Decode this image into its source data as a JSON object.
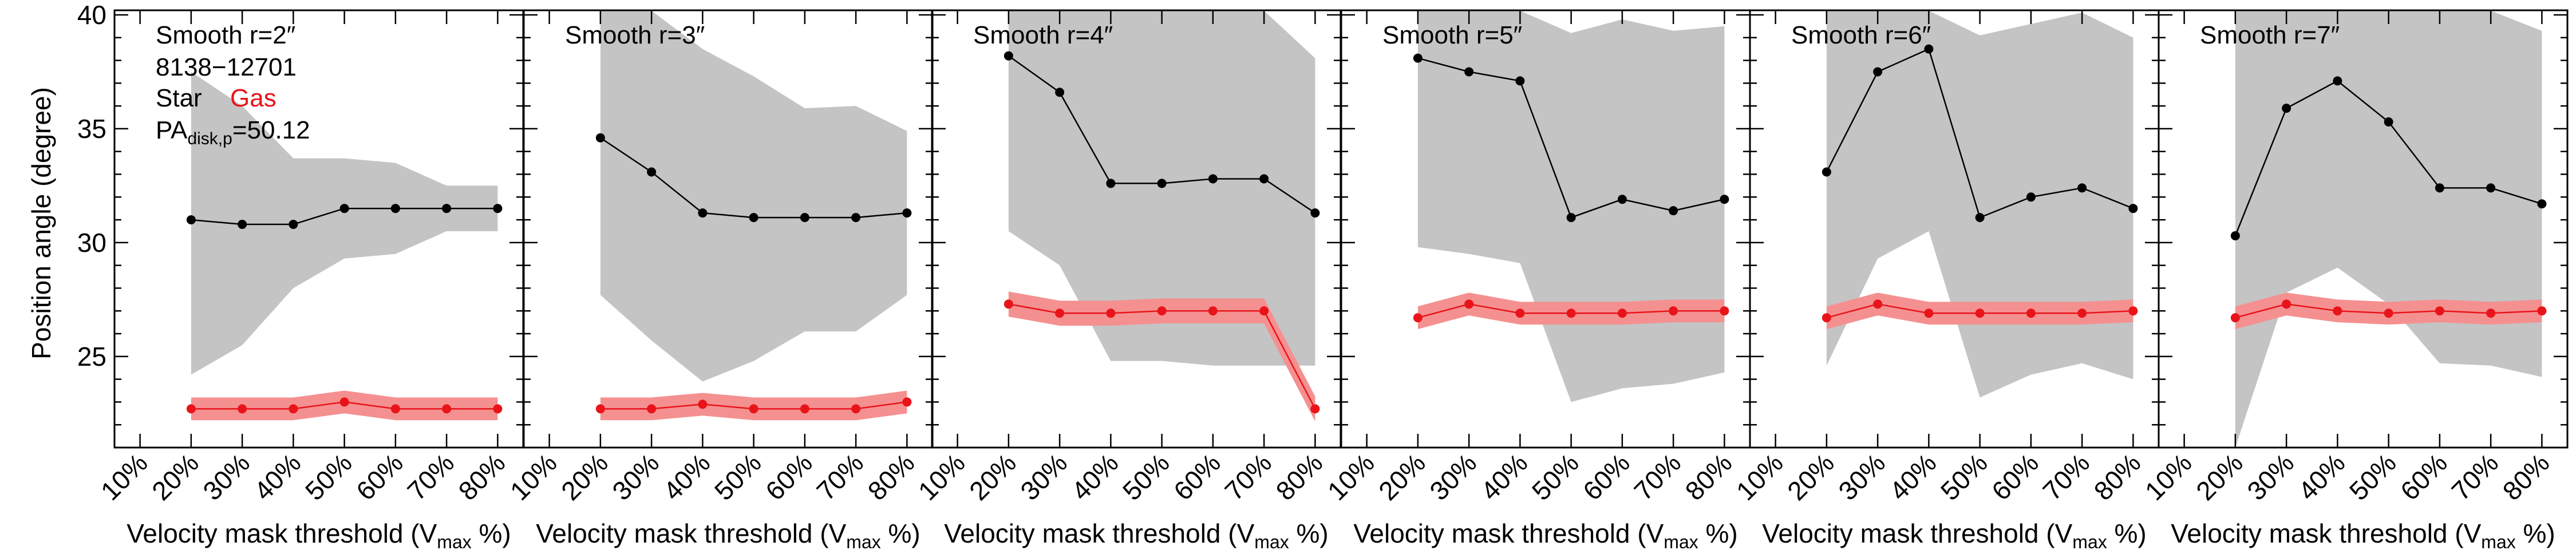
{
  "chart_data": {
    "type": "line",
    "ylabel": "Position angle (degree)",
    "ylim": [
      21,
      40.2
    ],
    "yticks": [
      25,
      30,
      35,
      40
    ],
    "x_tick_labels": [
      "10%",
      "20%",
      "30%",
      "40%",
      "50%",
      "60%",
      "70%",
      "80%"
    ],
    "xlim": [
      5,
      85
    ],
    "annotation": {
      "id_label": "8138−12701",
      "star_label": "Star",
      "gas_label": "Gas",
      "pa_prefix": "PA",
      "pa_subscript": "disk,p",
      "pa_value": "=50.12"
    },
    "colors": {
      "star_line": "#000000",
      "star_band": "#c4c4c4",
      "gas_line": "#e8141a",
      "gas_band": "#f59090"
    },
    "panels": [
      {
        "title": "Smooth r=2″",
        "xlabel_main": "Velocity mask threshold (V",
        "xlabel_sub": "max",
        "xlabel_end": " %)",
        "x": [
          20,
          30,
          40,
          50,
          60,
          70,
          80
        ],
        "star": [
          31.0,
          30.8,
          30.8,
          31.5,
          31.5,
          31.5,
          31.5
        ],
        "star_band_upper": [
          37.5,
          36.0,
          33.7,
          33.7,
          33.5,
          32.5,
          32.5
        ],
        "star_band_lower": [
          24.2,
          25.5,
          28.0,
          29.3,
          29.5,
          30.5,
          30.5
        ],
        "gas": [
          22.7,
          22.7,
          22.7,
          23.0,
          22.7,
          22.7,
          22.7
        ],
        "gas_band_halfwidth": 0.5
      },
      {
        "title": "Smooth r=3″",
        "xlabel_main": "Velocity mask threshold (V",
        "xlabel_sub": "max",
        "xlabel_end": " %)",
        "x": [
          20,
          30,
          40,
          50,
          60,
          70,
          80
        ],
        "star": [
          34.6,
          33.1,
          31.3,
          31.1,
          31.1,
          31.1,
          31.3
        ],
        "star_band_upper": [
          40.2,
          40.2,
          38.5,
          37.3,
          35.9,
          36.0,
          34.9
        ],
        "star_band_lower": [
          27.7,
          25.7,
          23.9,
          24.8,
          26.1,
          26.1,
          27.7
        ],
        "gas": [
          22.7,
          22.7,
          22.9,
          22.7,
          22.7,
          22.7,
          23.0
        ],
        "gas_band_halfwidth": 0.5
      },
      {
        "title": "Smooth r=4″",
        "xlabel_main": "Velocity mask threshold (V",
        "xlabel_sub": "max",
        "xlabel_end": " %)",
        "x": [
          20,
          30,
          40,
          50,
          60,
          70,
          80
        ],
        "star": [
          38.2,
          36.6,
          32.6,
          32.6,
          32.8,
          32.8,
          31.3
        ],
        "star_band_upper": [
          40.2,
          40.2,
          40.2,
          40.2,
          40.2,
          40.2,
          38.1
        ],
        "star_band_lower": [
          30.5,
          29.0,
          24.8,
          24.8,
          24.6,
          24.6,
          24.6
        ],
        "gas": [
          27.3,
          26.9,
          26.9,
          27.0,
          27.0,
          27.0,
          22.7
        ],
        "gas_band_halfwidth": 0.55
      },
      {
        "title": "Smooth r=5″",
        "xlabel_main": "Velocity mask threshold (V",
        "xlabel_sub": "max",
        "xlabel_end": " %)",
        "x": [
          20,
          30,
          40,
          50,
          60,
          70,
          80
        ],
        "star": [
          38.1,
          37.5,
          37.1,
          31.1,
          31.9,
          31.4,
          31.9
        ],
        "star_band_upper": [
          40.2,
          40.2,
          40.2,
          39.2,
          39.8,
          39.3,
          39.5
        ],
        "star_band_lower": [
          29.8,
          29.5,
          29.1,
          23.0,
          23.6,
          23.8,
          24.3
        ],
        "gas": [
          26.7,
          27.3,
          26.9,
          26.9,
          26.9,
          27.0,
          27.0
        ],
        "gas_band_halfwidth": 0.5
      },
      {
        "title": "Smooth r=6″",
        "xlabel_main": "Velocity mask threshold (V",
        "xlabel_sub": "max",
        "xlabel_end": " %)",
        "x": [
          20,
          30,
          40,
          50,
          60,
          70,
          80
        ],
        "star": [
          33.1,
          37.5,
          38.5,
          31.1,
          32.0,
          32.4,
          31.5
        ],
        "star_band_upper": [
          40.2,
          40.2,
          40.2,
          39.1,
          39.6,
          40.1,
          39.0
        ],
        "star_band_lower": [
          24.6,
          29.3,
          30.5,
          23.2,
          24.2,
          24.7,
          24.0
        ],
        "gas": [
          26.7,
          27.3,
          26.9,
          26.9,
          26.9,
          26.9,
          27.0
        ],
        "gas_band_halfwidth": 0.5
      },
      {
        "title": "Smooth r=7″",
        "xlabel_main": "Velocity mask threshold (V",
        "xlabel_sub": "max",
        "xlabel_end": " %)",
        "x": [
          20,
          30,
          40,
          50,
          60,
          70,
          80
        ],
        "star": [
          30.3,
          35.9,
          37.1,
          35.3,
          32.4,
          32.4,
          31.7
        ],
        "star_band_upper": [
          40.2,
          40.2,
          40.2,
          40.2,
          40.2,
          40.2,
          39.3
        ],
        "star_band_lower": [
          21.0,
          27.8,
          28.9,
          27.3,
          24.7,
          24.6,
          24.1
        ],
        "gas": [
          26.7,
          27.3,
          27.0,
          26.9,
          27.0,
          26.9,
          27.0
        ],
        "gas_band_halfwidth": 0.5
      }
    ]
  }
}
